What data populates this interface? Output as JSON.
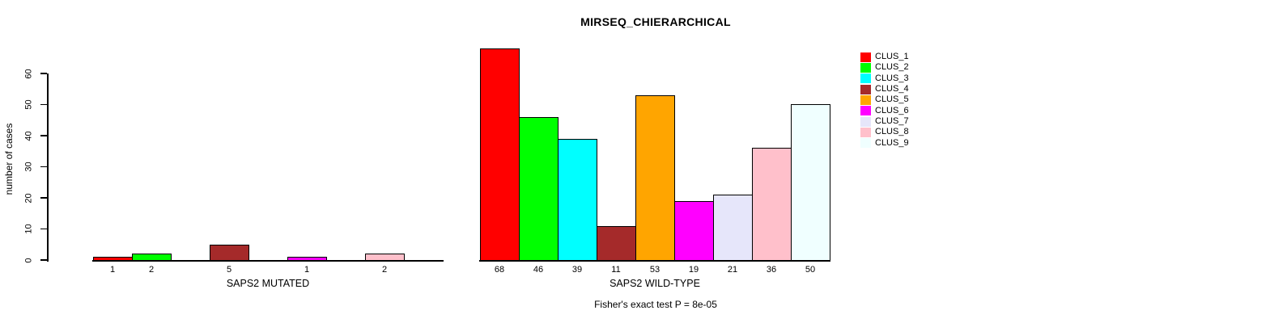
{
  "title": "MIRSEQ_CHIERARCHICAL",
  "annotation": "Fisher's exact test P = 8e-05",
  "legend": {
    "position": "top-right",
    "items": [
      {
        "label": "CLUS_1",
        "color": "#FF0000"
      },
      {
        "label": "CLUS_2",
        "color": "#00FF00"
      },
      {
        "label": "CLUS_3",
        "color": "#00FFFF"
      },
      {
        "label": "CLUS_4",
        "color": "#A52A2A"
      },
      {
        "label": "CLUS_5",
        "color": "#FFA500"
      },
      {
        "label": "CLUS_6",
        "color": "#FF00FF"
      },
      {
        "label": "CLUS_7",
        "color": "#E6E6FA"
      },
      {
        "label": "CLUS_8",
        "color": "#FFC0CB"
      },
      {
        "label": "CLUS_9",
        "color": "#F0FFFF"
      }
    ]
  },
  "chart_data": [
    {
      "type": "bar",
      "title": "MIRSEQ_CHIERARCHICAL",
      "xlabel": "SAPS2 MUTATED",
      "ylabel": "number of cases",
      "categories": [
        "CLUS_1",
        "CLUS_2",
        "CLUS_3",
        "CLUS_4",
        "CLUS_5",
        "CLUS_6",
        "CLUS_7",
        "CLUS_8",
        "CLUS_9"
      ],
      "values": [
        1,
        2,
        0,
        5,
        0,
        1,
        0,
        2,
        0
      ],
      "bar_labels": [
        "1",
        "2",
        "",
        "5",
        "",
        "1",
        "",
        "2",
        ""
      ],
      "colors": [
        "#FF0000",
        "#00FF00",
        "#00FFFF",
        "#A52A2A",
        "#FFA500",
        "#FF00FF",
        "#E6E6FA",
        "#FFC0CB",
        "#F0FFFF"
      ],
      "yticks": [
        0,
        10,
        20,
        30,
        40,
        50,
        60
      ],
      "ylim": [
        0,
        68
      ],
      "grid": false,
      "legend_position": "top-right"
    },
    {
      "type": "bar",
      "title": "MIRSEQ_CHIERARCHICAL",
      "xlabel": "SAPS2 WILD-TYPE",
      "ylabel": "number of cases",
      "categories": [
        "CLUS_1",
        "CLUS_2",
        "CLUS_3",
        "CLUS_4",
        "CLUS_5",
        "CLUS_6",
        "CLUS_7",
        "CLUS_8",
        "CLUS_9"
      ],
      "values": [
        68,
        46,
        39,
        11,
        53,
        19,
        21,
        36,
        50
      ],
      "bar_labels": [
        "68",
        "46",
        "39",
        "11",
        "53",
        "19",
        "21",
        "36",
        "50"
      ],
      "colors": [
        "#FF0000",
        "#00FF00",
        "#00FFFF",
        "#A52A2A",
        "#FFA500",
        "#FF00FF",
        "#E6E6FA",
        "#FFC0CB",
        "#F0FFFF"
      ],
      "yticks": [
        0,
        10,
        20,
        30,
        40,
        50,
        60
      ],
      "ylim": [
        0,
        68
      ],
      "grid": false,
      "legend_position": "top-right"
    }
  ]
}
